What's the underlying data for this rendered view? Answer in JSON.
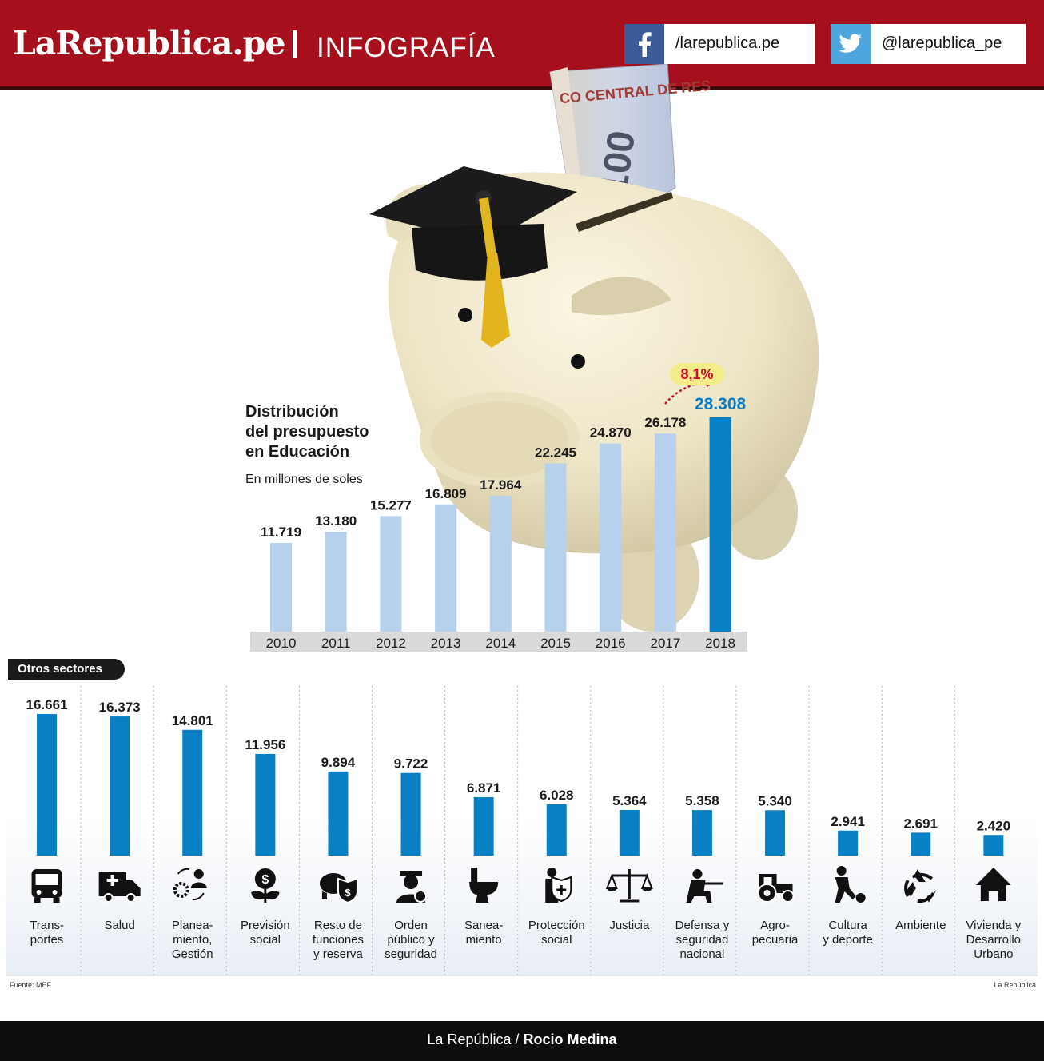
{
  "header": {
    "brand": "LaRepublica.pe",
    "section": "INFOGRAFÍA",
    "facebook": "/larepublica.pe",
    "twitter": "@larepublica_pe"
  },
  "chart_data": [
    {
      "type": "bar",
      "title": "Distribución del presupuesto en Educación",
      "title_lines": [
        "Distribución",
        "del presupuesto",
        "en Educación"
      ],
      "subtitle": "En millones de soles",
      "categories": [
        "2010",
        "2011",
        "2012",
        "2013",
        "2014",
        "2015",
        "2016",
        "2017",
        "2018"
      ],
      "values": [
        11719,
        13180,
        15277,
        16809,
        17964,
        22245,
        24870,
        26178,
        28308
      ],
      "value_labels": [
        "11.719",
        "13.180",
        "15.277",
        "16.809",
        "17.964",
        "22.245",
        "24.870",
        "26.178",
        "28.308"
      ],
      "highlight_index": 8,
      "annotation": "8,1%",
      "colors": {
        "bar": "#b7d1ec",
        "highlight": "#0a80c4",
        "highlight_label": "#0a7bc0",
        "badge_bg": "#f4ec8a",
        "badge_text": "#c8102e"
      }
    },
    {
      "type": "bar",
      "title": "Otros sectores",
      "categories": [
        "Transportes",
        "Salud",
        "Planeamiento, Gestión",
        "Previsión social",
        "Resto de funciones y reserva",
        "Orden público y seguridad",
        "Saneamiento",
        "Protección social",
        "Justicia",
        "Defensa y seguridad nacional",
        "Agropecuaria",
        "Cultura y deporte",
        "Ambiente",
        "Vivienda y Desarrollo Urbano"
      ],
      "category_labels": [
        "Trans-\nportes",
        "Salud",
        "Planea-\nmiento,\nGestión",
        "Previsión\nsocial",
        "Resto de\nfunciones\ny reserva",
        "Orden\npúblico y\nseguridad",
        "Sanea-\nmiento",
        "Protección\nsocial",
        "Justicia",
        "Defensa y\nseguridad\nnacional",
        "Agro-\npecuaria",
        "Cultura\ny deporte",
        "Ambiente",
        "Vivienda y\nDesarrollo\nUrbano"
      ],
      "icons": [
        "bus-icon",
        "ambulance-icon",
        "planning-icon",
        "money-plant-icon",
        "piggy-shield-icon",
        "police-icon",
        "toilet-icon",
        "social-protection-icon",
        "scales-icon",
        "soldier-icon",
        "tractor-icon",
        "soccer-player-icon",
        "recycle-icon",
        "house-icon"
      ],
      "values": [
        16661,
        16373,
        14801,
        11956,
        9894,
        9722,
        6871,
        6028,
        5364,
        5358,
        5340,
        2941,
        2691,
        2420
      ],
      "value_labels": [
        "16.661",
        "16.373",
        "14.801",
        "11.956",
        "9.894",
        "9.722",
        "6.871",
        "6.028",
        "5.364",
        "5.358",
        "5.340",
        "2.941",
        "2.691",
        "2.420"
      ],
      "colors": {
        "bar": "#0a80c4"
      }
    }
  ],
  "source": "Fuente: MEF",
  "credit_right": "La República",
  "footer": {
    "outlet": "La República",
    "sep": "/",
    "author": "Rocio Medina"
  }
}
